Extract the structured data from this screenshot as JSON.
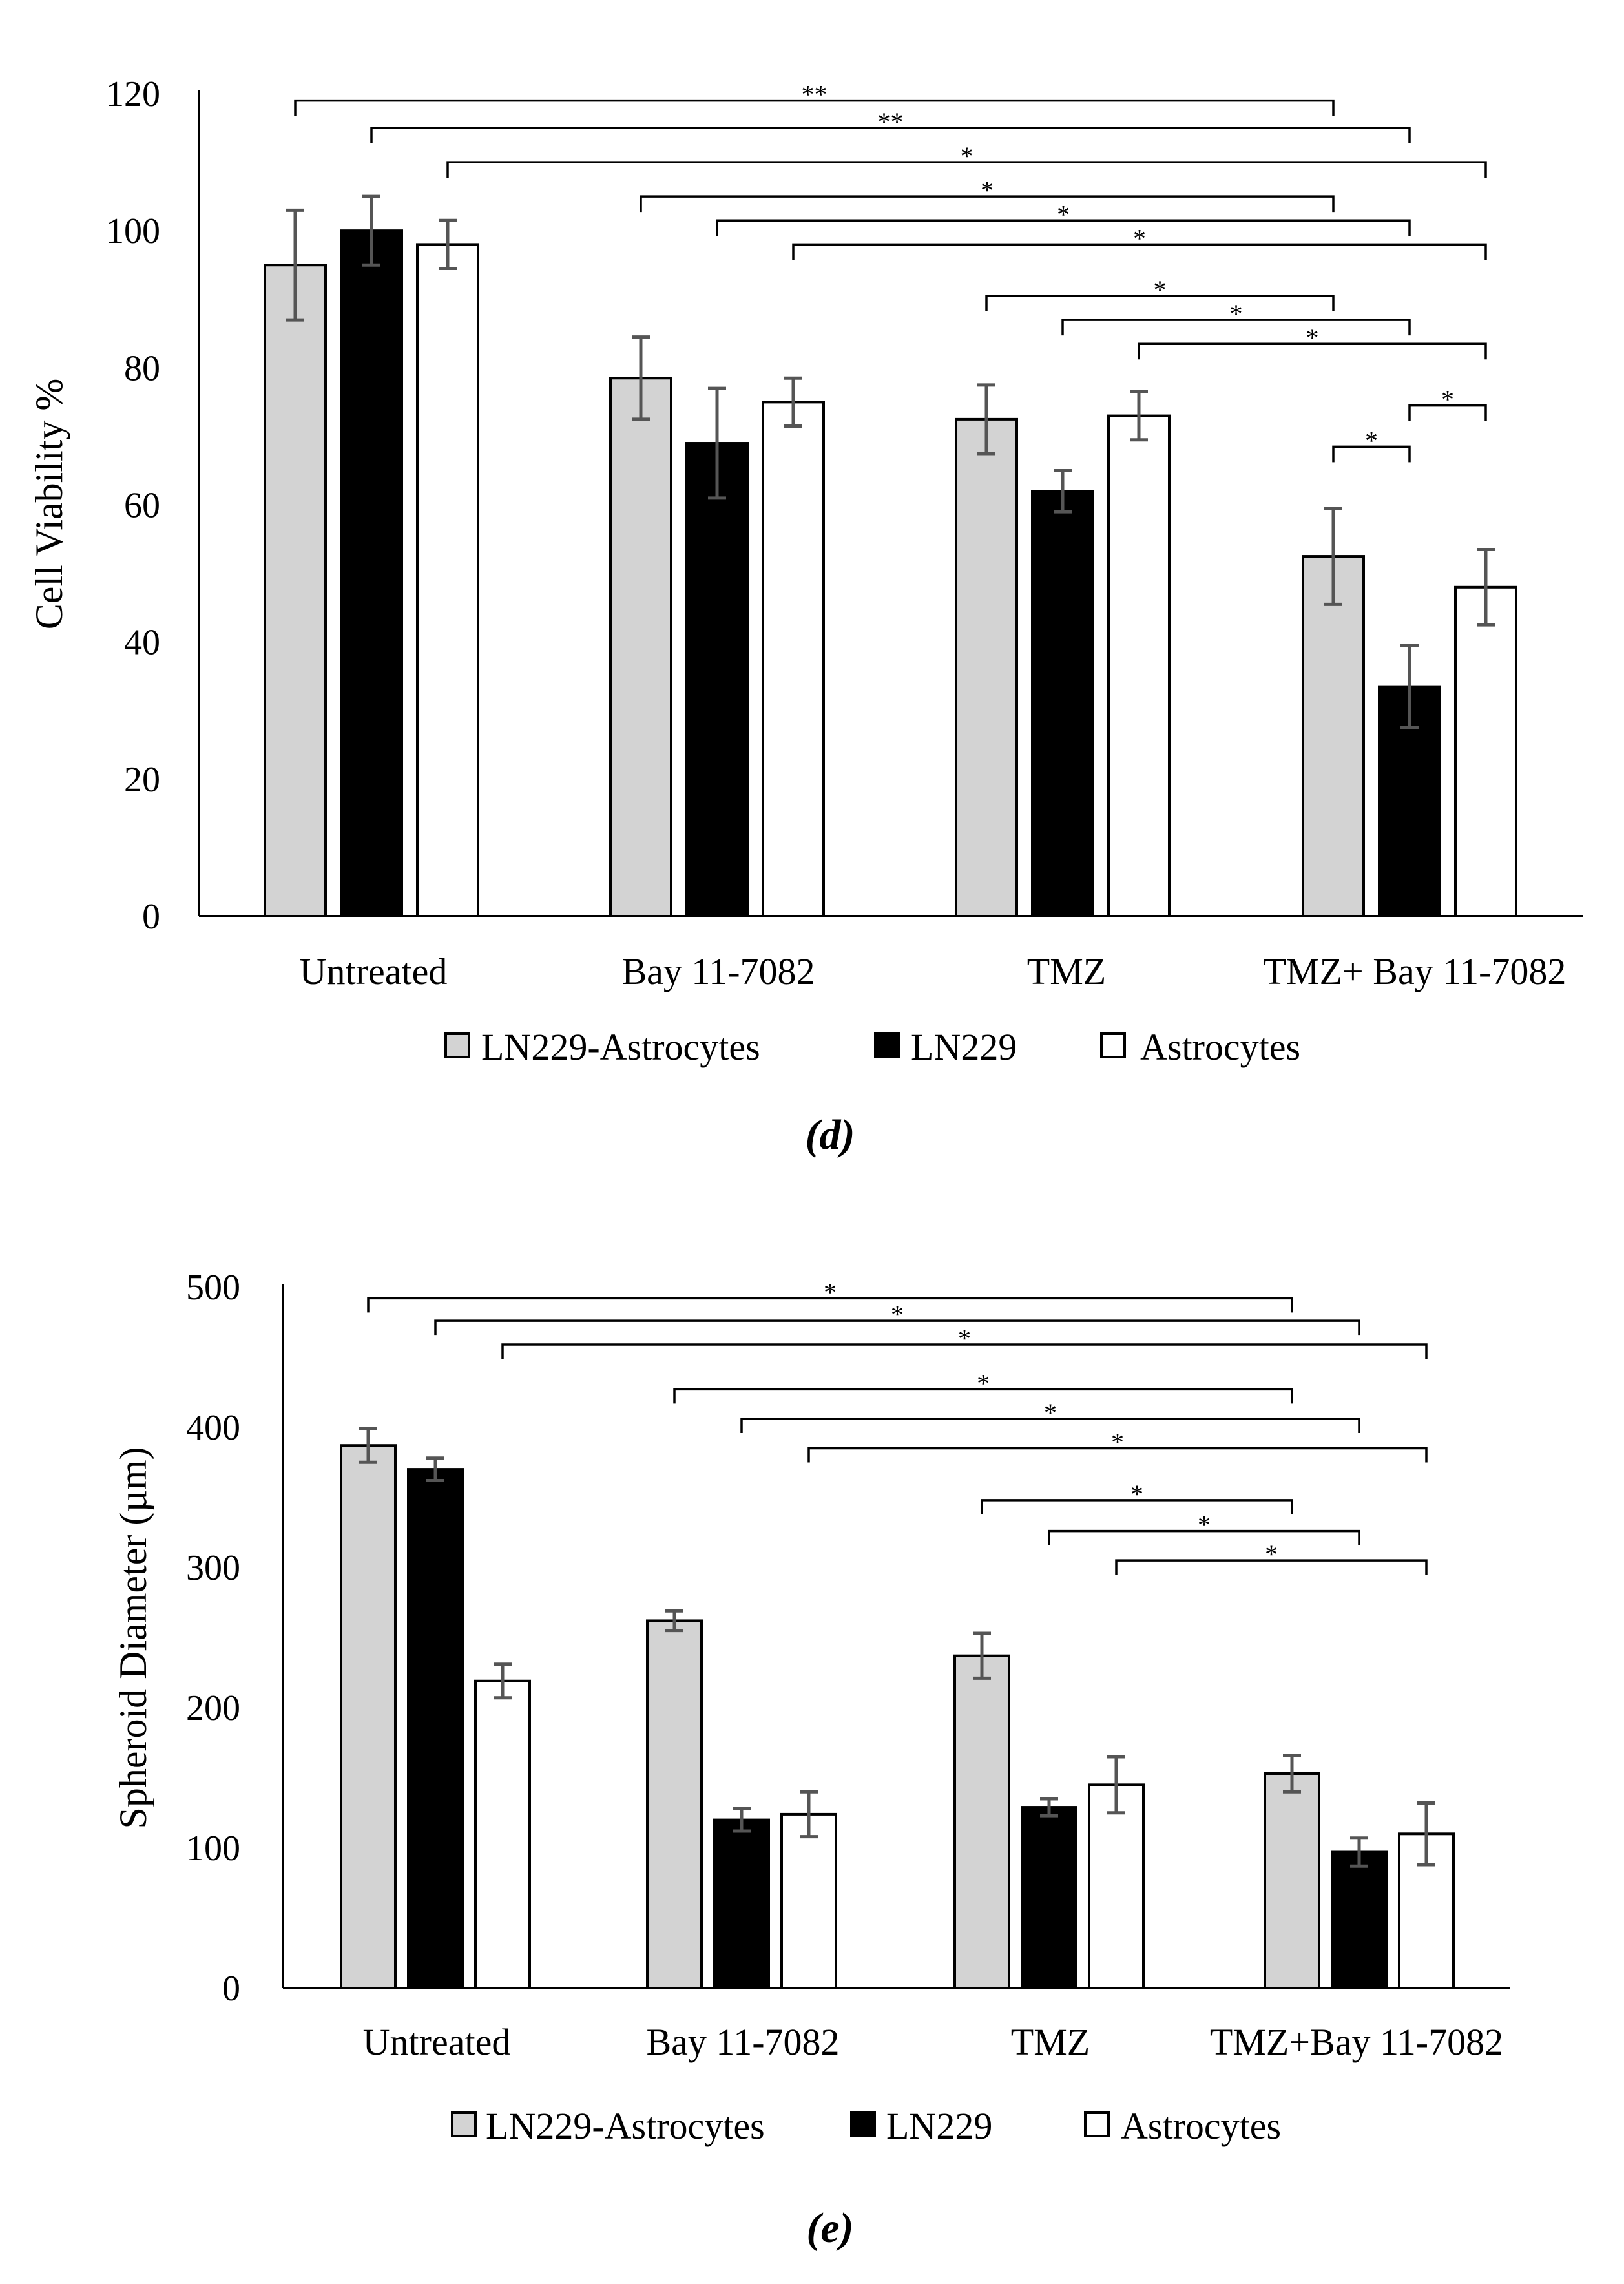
{
  "chart_data": [
    {
      "id": "d",
      "type": "bar",
      "panel_label": "(d)",
      "ylabel": "Cell Viability %",
      "xlabel": "",
      "ylim": [
        0,
        120
      ],
      "yticks": [
        0,
        20,
        40,
        60,
        80,
        100,
        120
      ],
      "categories": [
        "Untreated",
        "Bay 11-7082",
        "TMZ",
        "TMZ+ Bay 11-7082"
      ],
      "series": [
        {
          "name": "LN229-Astrocytes",
          "color": "#d3d3d3",
          "values": [
            95,
            78.5,
            72.5,
            52.5
          ],
          "errors": [
            8,
            6,
            5,
            7
          ]
        },
        {
          "name": "LN229",
          "color": "#000000",
          "values": [
            100,
            69,
            62,
            33.5
          ],
          "errors": [
            5,
            8,
            3,
            6
          ]
        },
        {
          "name": "Astrocytes",
          "color": "#ffffff",
          "values": [
            98,
            75,
            73,
            48
          ],
          "errors": [
            3.5,
            3.5,
            3.5,
            5.5
          ]
        }
      ],
      "significance": [
        {
          "from": [
            0,
            0
          ],
          "to": [
            3,
            0
          ],
          "label": "**",
          "y": 119
        },
        {
          "from": [
            0,
            1
          ],
          "to": [
            3,
            1
          ],
          "label": "**",
          "y": 115
        },
        {
          "from": [
            0,
            2
          ],
          "to": [
            3,
            2
          ],
          "label": "*",
          "y": 110
        },
        {
          "from": [
            1,
            0
          ],
          "to": [
            3,
            0
          ],
          "label": "*",
          "y": 105
        },
        {
          "from": [
            1,
            1
          ],
          "to": [
            3,
            1
          ],
          "label": "*",
          "y": 101.5
        },
        {
          "from": [
            1,
            2
          ],
          "to": [
            3,
            2
          ],
          "label": "*",
          "y": 98
        },
        {
          "from": [
            2,
            0
          ],
          "to": [
            3,
            0
          ],
          "label": "*",
          "y": 90.5
        },
        {
          "from": [
            2,
            1
          ],
          "to": [
            3,
            1
          ],
          "label": "*",
          "y": 87
        },
        {
          "from": [
            2,
            2
          ],
          "to": [
            3,
            2
          ],
          "label": "*",
          "y": 83.5
        },
        {
          "from": [
            3,
            0
          ],
          "to": [
            3,
            1
          ],
          "label": "*",
          "y": 68.5
        },
        {
          "from": [
            3,
            1
          ],
          "to": [
            3,
            2
          ],
          "label": "*",
          "y": 74.5
        }
      ],
      "legend_position": "bottom"
    },
    {
      "id": "e",
      "type": "bar",
      "panel_label": "(e)",
      "ylabel": "Spheroid Diameter (µm)",
      "xlabel": "",
      "ylim": [
        0,
        500
      ],
      "yticks": [
        0,
        100,
        200,
        300,
        400,
        500
      ],
      "categories": [
        "Untreated",
        "Bay 11-7082",
        "TMZ",
        "TMZ+Bay 11-7082"
      ],
      "series": [
        {
          "name": "LN229-Astrocytes",
          "color": "#d3d3d3",
          "values": [
            387,
            262,
            237,
            153
          ],
          "errors": [
            12,
            7,
            16,
            13
          ]
        },
        {
          "name": "LN229",
          "color": "#000000",
          "values": [
            370,
            120,
            129,
            97
          ],
          "errors": [
            8,
            8,
            6,
            10
          ]
        },
        {
          "name": "Astrocytes",
          "color": "#ffffff",
          "values": [
            219,
            124,
            145,
            110
          ],
          "errors": [
            12,
            16,
            20,
            22
          ]
        }
      ],
      "significance": [
        {
          "from": [
            0,
            0
          ],
          "to": [
            3,
            0
          ],
          "label": "*",
          "y": 492
        },
        {
          "from": [
            0,
            1
          ],
          "to": [
            3,
            1
          ],
          "label": "*",
          "y": 476
        },
        {
          "from": [
            0,
            2
          ],
          "to": [
            3,
            2
          ],
          "label": "*",
          "y": 459
        },
        {
          "from": [
            1,
            0
          ],
          "to": [
            3,
            0
          ],
          "label": "*",
          "y": 427
        },
        {
          "from": [
            1,
            1
          ],
          "to": [
            3,
            1
          ],
          "label": "*",
          "y": 406
        },
        {
          "from": [
            1,
            2
          ],
          "to": [
            3,
            2
          ],
          "label": "*",
          "y": 385
        },
        {
          "from": [
            2,
            0
          ],
          "to": [
            3,
            0
          ],
          "label": "*",
          "y": 348
        },
        {
          "from": [
            2,
            1
          ],
          "to": [
            3,
            1
          ],
          "label": "*",
          "y": 326
        },
        {
          "from": [
            2,
            2
          ],
          "to": [
            3,
            2
          ],
          "label": "*",
          "y": 305
        }
      ],
      "legend_position": "bottom"
    }
  ]
}
